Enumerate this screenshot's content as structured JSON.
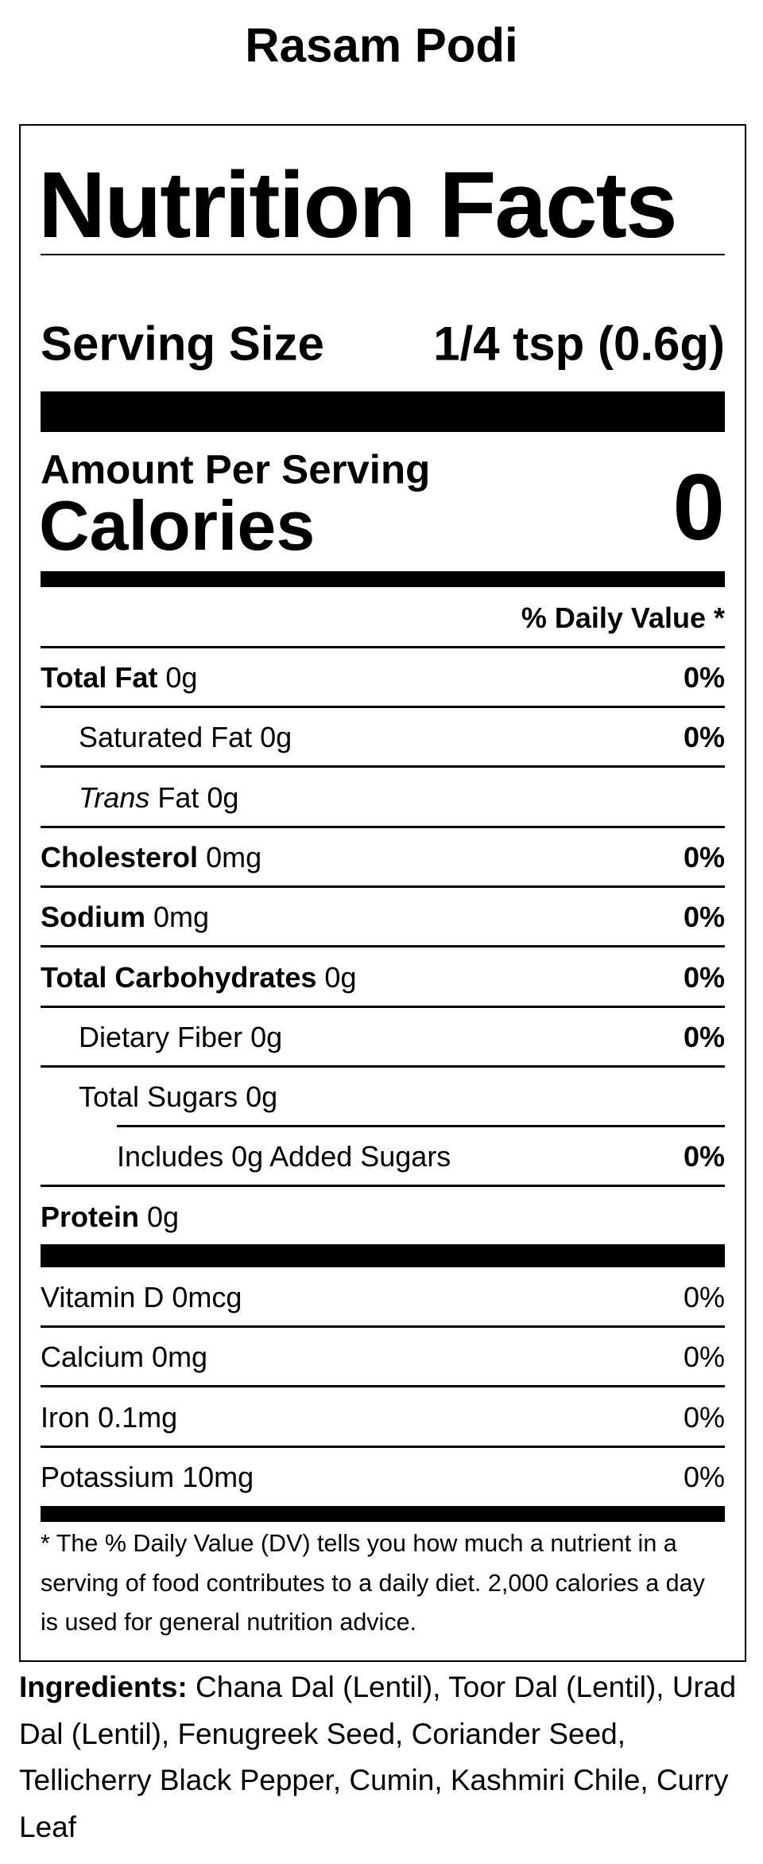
{
  "title": "Rasam Podi",
  "label": {
    "heading": "Nutrition Facts",
    "serving_size": {
      "label": "Serving Size",
      "value": "1/4 tsp (0.6g)"
    },
    "amount_per_serving": "Amount Per Serving",
    "calories": {
      "label": "Calories",
      "value": "0"
    },
    "daily_value_header": "% Daily Value *",
    "nutrients": [
      {
        "name": "Total Fat",
        "amount": "0g",
        "dv": "0%",
        "sub": [
          {
            "name": "Saturated Fat",
            "amount": "0g",
            "dv": "0%"
          },
          {
            "name_italic": "Trans",
            "name": "Fat",
            "amount": "0g"
          }
        ]
      },
      {
        "name": "Cholesterol",
        "amount": "0mg",
        "dv": "0%"
      },
      {
        "name": "Sodium",
        "amount": "0mg",
        "dv": "0%"
      },
      {
        "name": "Total Carbohydrates",
        "amount": "0g",
        "dv": "0%",
        "sub": [
          {
            "name": "Dietary Fiber",
            "amount": "0g",
            "dv": "0%"
          },
          {
            "name": "Total Sugars",
            "amount": "0g",
            "sub": [
              {
                "name": "Includes 0g Added Sugars",
                "dv": "0%"
              }
            ]
          }
        ]
      },
      {
        "name": "Protein",
        "amount": "0g"
      }
    ],
    "vitamins": [
      {
        "name": "Vitamin D",
        "amount": "0mcg",
        "dv": "0%"
      },
      {
        "name": "Calcium",
        "amount": "0mg",
        "dv": "0%"
      },
      {
        "name": "Iron",
        "amount": "0.1mg",
        "dv": "0%"
      },
      {
        "name": "Potassium",
        "amount": "10mg",
        "dv": "0%"
      }
    ],
    "footnote": "* The % Daily Value (DV) tells you how much a nutrient in a serving of food contributes to a daily diet. 2,000 calories a day is used for general nutrition advice."
  },
  "ingredients": {
    "label": "Ingredients:",
    "text": "Chana Dal (Lentil), Toor Dal (Lentil), Urad Dal (Lentil), Fenugreek Seed, Coriander Seed, Tellicherry Black Pepper, Cumin, Kashmiri Chile, Curry Leaf"
  }
}
